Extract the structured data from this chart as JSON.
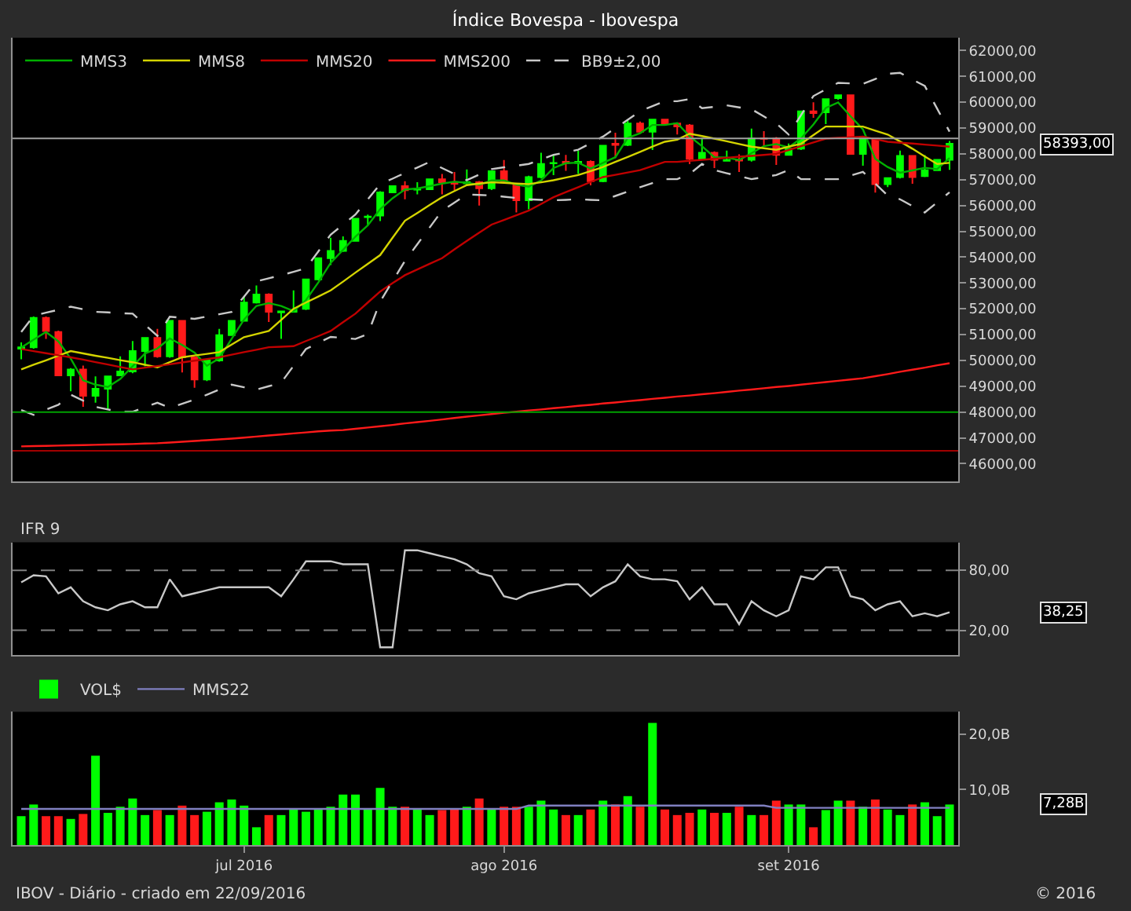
{
  "chart_data": [
    {
      "type": "candlestick",
      "title": "Índice Bovespa - Ibovespa",
      "categories": [
        null,
        null,
        null,
        null,
        null,
        null,
        null,
        null,
        null,
        null,
        null,
        null,
        null,
        null,
        null,
        null,
        null,
        null,
        null,
        null,
        null,
        null,
        null,
        null,
        null,
        null,
        null,
        null,
        null,
        null,
        null,
        null,
        null,
        null,
        null,
        null,
        null,
        null,
        null,
        null,
        null,
        null,
        null,
        null,
        null,
        null,
        null,
        null,
        null,
        null,
        null,
        null,
        null,
        null,
        null,
        null,
        null,
        null,
        null,
        null,
        null,
        null,
        null,
        null,
        null,
        null,
        null,
        null,
        null,
        null,
        null,
        null,
        null,
        null,
        null,
        null
      ],
      "ohlc": [
        [
          50450,
          50700,
          50040,
          50510
        ],
        [
          50510,
          51700,
          50450,
          51650
        ],
        [
          51650,
          51700,
          50830,
          51140
        ],
        [
          51100,
          51150,
          49400,
          49420
        ],
        [
          49420,
          49700,
          48800,
          49650
        ],
        [
          49650,
          49800,
          48200,
          48630
        ],
        [
          48630,
          49380,
          48360,
          48900
        ],
        [
          48900,
          49400,
          48080,
          49380
        ],
        [
          49420,
          50160,
          49400,
          49570
        ],
        [
          49570,
          50750,
          49500,
          50360
        ],
        [
          50360,
          50900,
          49770,
          50870
        ],
        [
          50870,
          51220,
          50100,
          50160
        ],
        [
          50160,
          51550,
          50100,
          51530
        ],
        [
          51530,
          51550,
          49530,
          50120
        ],
        [
          50120,
          50150,
          48940,
          49260
        ],
        [
          49260,
          50050,
          49200,
          50000
        ],
        [
          50000,
          51220,
          49950,
          50980
        ],
        [
          50980,
          51550,
          50950,
          51530
        ],
        [
          51530,
          52470,
          51500,
          52240
        ],
        [
          52240,
          52900,
          52200,
          52550
        ],
        [
          52550,
          52600,
          51490,
          51880
        ],
        [
          51860,
          51900,
          50830,
          51900
        ],
        [
          51880,
          52710,
          51850,
          51950
        ],
        [
          52000,
          53150,
          51950,
          53140
        ],
        [
          53140,
          53980,
          53100,
          53960
        ],
        [
          53960,
          54750,
          53690,
          54240
        ],
        [
          54240,
          54800,
          54200,
          54630
        ],
        [
          54630,
          55500,
          54600,
          55490
        ],
        [
          55550,
          55650,
          55240,
          55570
        ],
        [
          55610,
          56550,
          55400,
          56510
        ],
        [
          56510,
          56780,
          56500,
          56750
        ],
        [
          56750,
          56940,
          56240,
          56590
        ],
        [
          56610,
          56900,
          56430,
          56630
        ],
        [
          56630,
          57050,
          56600,
          57020
        ],
        [
          57020,
          57220,
          56430,
          56900
        ],
        [
          56880,
          57300,
          56600,
          56840
        ],
        [
          56860,
          57400,
          56800,
          56900
        ],
        [
          56900,
          56950,
          56000,
          56670
        ],
        [
          56670,
          57350,
          56600,
          57330
        ],
        [
          57330,
          57760,
          56850,
          56900
        ],
        [
          56790,
          56850,
          55730,
          56200
        ],
        [
          56200,
          57150,
          55850,
          57100
        ],
        [
          57100,
          58040,
          57050,
          57610
        ],
        [
          57630,
          57960,
          57180,
          57650
        ],
        [
          57690,
          57960,
          57340,
          57650
        ],
        [
          57650,
          58120,
          57220,
          57690
        ],
        [
          57690,
          57750,
          56780,
          56940
        ],
        [
          56940,
          58350,
          56900,
          58320
        ],
        [
          58390,
          58820,
          57840,
          58350
        ],
        [
          58350,
          59330,
          58300,
          59180
        ],
        [
          59180,
          59250,
          58800,
          58860
        ],
        [
          58860,
          59350,
          58150,
          59330
        ],
        [
          59330,
          59350,
          59100,
          59180
        ],
        [
          59180,
          59200,
          58750,
          59060
        ],
        [
          59100,
          59150,
          57600,
          57810
        ],
        [
          57810,
          58590,
          57800,
          58040
        ],
        [
          58040,
          58100,
          57450,
          57770
        ],
        [
          57730,
          58130,
          57700,
          57760
        ],
        [
          57780,
          57980,
          57300,
          57740
        ],
        [
          57770,
          58980,
          57700,
          58590
        ],
        [
          58600,
          58880,
          58280,
          58580
        ],
        [
          58590,
          58650,
          57570,
          57960
        ],
        [
          57960,
          58400,
          57930,
          58200
        ],
        [
          58200,
          59680,
          58150,
          59650
        ],
        [
          59650,
          60000,
          59400,
          59580
        ],
        [
          59610,
          60150,
          59150,
          60120
        ],
        [
          60160,
          60300,
          60100,
          60270
        ],
        [
          60270,
          60300,
          57990,
          58000
        ],
        [
          58000,
          58620,
          57540,
          58590
        ],
        [
          58590,
          58620,
          56500,
          56830
        ],
        [
          56830,
          57060,
          56710,
          57060
        ],
        [
          57100,
          58130,
          57050,
          57920
        ],
        [
          57920,
          57940,
          56840,
          57100
        ],
        [
          57140,
          57950,
          57100,
          57370
        ],
        [
          57370,
          57800,
          57350,
          57770
        ],
        [
          57770,
          58500,
          57380,
          58393
        ]
      ],
      "series": [
        {
          "name": "MMS3",
          "type": "line",
          "color": "#00b000",
          "values": [
            50500,
            50800,
            51100,
            50740,
            50070,
            49230,
            49060,
            48970,
            49280,
            49770,
            50270,
            50460,
            50850,
            50600,
            50300,
            49790,
            50080,
            50840,
            51580,
            52110,
            52220,
            52110,
            51910,
            52330,
            53020,
            53780,
            54280,
            54790,
            55230,
            55860,
            56280,
            56620,
            56660,
            56750,
            56850,
            56920,
            56880,
            56800,
            56970,
            56970,
            56810,
            56730,
            56970,
            57450,
            57640,
            57660,
            57430,
            57650,
            57870,
            58620,
            58800,
            59120,
            59120,
            59190,
            58680,
            58300,
            57870,
            57860,
            57760,
            58030,
            58300,
            58380,
            58250,
            58600,
            59140,
            59780,
            59990,
            59460,
            58950,
            57810,
            57490,
            57270,
            57360,
            57460,
            57410,
            57840
          ]
        },
        {
          "name": "MMS8",
          "type": "line",
          "color": "#d4d400",
          "values": [
            49650,
            49830,
            50000,
            50180,
            50360,
            50270,
            50180,
            50100,
            50010,
            49930,
            49830,
            49730,
            49930,
            50120,
            50190,
            50250,
            50320,
            50610,
            50900,
            51020,
            51140,
            51570,
            52000,
            52240,
            52470,
            52710,
            53050,
            53400,
            53740,
            54080,
            54750,
            55410,
            55710,
            56020,
            56320,
            56560,
            56790,
            56850,
            56900,
            56880,
            56850,
            56830,
            56900,
            56980,
            57080,
            57180,
            57330,
            57490,
            57690,
            57880,
            58080,
            58280,
            58470,
            58550,
            58780,
            58690,
            58590,
            58490,
            58380,
            58280,
            58220,
            58160,
            58280,
            58390,
            58730,
            59060,
            59060,
            59060,
            59060,
            58900,
            58750,
            58480,
            58200,
            57900,
            57610,
            57650
          ]
        },
        {
          "name": "MMS20",
          "type": "line",
          "color": "#c00000",
          "values": [
            50440,
            50360,
            50280,
            50200,
            50120,
            50030,
            49930,
            49840,
            49740,
            49650,
            49720,
            49780,
            49850,
            49920,
            49990,
            50050,
            50120,
            50220,
            50320,
            50410,
            50510,
            50530,
            50550,
            50750,
            50940,
            51140,
            51480,
            51810,
            52240,
            52670,
            52990,
            53300,
            53520,
            53740,
            53960,
            54300,
            54630,
            54950,
            55260,
            55440,
            55620,
            55800,
            56060,
            56320,
            56520,
            56710,
            56910,
            57100,
            57190,
            57280,
            57370,
            57530,
            57690,
            57690,
            57730,
            57770,
            57810,
            57850,
            57890,
            57920,
            57960,
            58000,
            58150,
            58300,
            58440,
            58590,
            58620,
            58640,
            58670,
            58570,
            58470,
            58430,
            58400,
            58360,
            58320,
            58280
          ]
        },
        {
          "name": "MMS200",
          "type": "line",
          "color": "#ff1a1a",
          "values": [
            46670,
            46680,
            46690,
            46700,
            46710,
            46720,
            46730,
            46740,
            46750,
            46760,
            46780,
            46790,
            46820,
            46850,
            46880,
            46910,
            46940,
            46970,
            47010,
            47050,
            47090,
            47130,
            47170,
            47210,
            47250,
            47280,
            47300,
            47350,
            47400,
            47450,
            47500,
            47560,
            47610,
            47660,
            47710,
            47770,
            47820,
            47870,
            47920,
            47970,
            48010,
            48060,
            48100,
            48150,
            48190,
            48240,
            48280,
            48330,
            48370,
            48420,
            48460,
            48510,
            48550,
            48600,
            48640,
            48690,
            48730,
            48780,
            48830,
            48870,
            48920,
            48970,
            49010,
            49060,
            49110,
            49160,
            49210,
            49260,
            49310,
            49390,
            49470,
            49560,
            49640,
            49720,
            49810,
            49890
          ]
        },
        {
          "name": "BB9±2,00",
          "type": "line",
          "color": "#c8c8c8",
          "line_style": "dashed",
          "values": [
            51100,
            51730,
            51850,
            51960,
            52080,
            51980,
            51880,
            51860,
            51830,
            51810,
            51380,
            50950,
            51690,
            51650,
            51610,
            51700,
            51790,
            51880,
            52470,
            53060,
            53180,
            53300,
            53430,
            53570,
            54220,
            54870,
            55260,
            55650,
            56240,
            56830,
            57040,
            57260,
            57470,
            57690,
            57450,
            57220,
            56980,
            57200,
            57410,
            57480,
            57540,
            57610,
            57780,
            57960,
            58060,
            58160,
            58410,
            58670,
            59000,
            59320,
            59650,
            59850,
            60040,
            60040,
            60120,
            59770,
            59820,
            59880,
            59800,
            59730,
            59450,
            59180,
            58750,
            59500,
            60240,
            60500,
            60750,
            60730,
            60710,
            60900,
            61100,
            61140,
            60880,
            60630,
            59750,
            58860
          ]
        },
        {
          "type": "line",
          "color": "#c8c8c8",
          "line_style": "dashed",
          "values": [
            48080,
            47890,
            48090,
            48280,
            48670,
            48440,
            48200,
            48100,
            48010,
            48010,
            48190,
            48360,
            48160,
            48320,
            48480,
            48670,
            48870,
            49060,
            48960,
            48870,
            49000,
            49140,
            49790,
            50440,
            50680,
            50910,
            50870,
            50830,
            51020,
            52280,
            53070,
            53850,
            54500,
            55150,
            55800,
            56110,
            56430,
            56410,
            56390,
            56340,
            56290,
            56240,
            56220,
            56200,
            56220,
            56240,
            56220,
            56200,
            56370,
            56540,
            56710,
            56870,
            57020,
            57020,
            57220,
            57610,
            57370,
            57250,
            57140,
            57020,
            57100,
            57180,
            57370,
            57020,
            57020,
            57020,
            57020,
            57160,
            57300,
            56850,
            56390,
            56240,
            55980,
            55730,
            56120,
            56510
          ]
        }
      ],
      "ylim": [
        45300,
        62500
      ],
      "yticks": [
        {
          "value": 46000,
          "label": "46000,00"
        },
        {
          "value": 47000,
          "label": "47000,00"
        },
        {
          "value": 48000,
          "label": "48000,00"
        },
        {
          "value": 49000,
          "label": "49000,00"
        },
        {
          "value": 50000,
          "label": "50000,00"
        },
        {
          "value": 51000,
          "label": "51000,00"
        },
        {
          "value": 52000,
          "label": "52000,00"
        },
        {
          "value": 53000,
          "label": "53000,00"
        },
        {
          "value": 54000,
          "label": "54000,00"
        },
        {
          "value": 55000,
          "label": "55000,00"
        },
        {
          "value": 56000,
          "label": "56000,00"
        },
        {
          "value": 57000,
          "label": "57000,00"
        },
        {
          "value": 58000,
          "label": "58000,00"
        },
        {
          "value": 59000,
          "label": "59000,00"
        },
        {
          "value": 60000,
          "label": "60000,00"
        },
        {
          "value": 61000,
          "label": "61000,00"
        },
        {
          "value": 62000,
          "label": "62000,00"
        }
      ],
      "ref_lines": [
        {
          "axis": "y",
          "value": 48000,
          "color": "#00a000"
        },
        {
          "axis": "y",
          "value": 46500,
          "color": "#a00000"
        },
        {
          "axis": "y",
          "value": 58600,
          "color": "#a0a0a0"
        }
      ],
      "annotations": [
        "58393,00"
      ],
      "legend": "top left",
      "tick_labels": "y"
    },
    {
      "type": "line",
      "title": "IFR 9",
      "categories": [
        null,
        null,
        null,
        null,
        null,
        null,
        null,
        null,
        null,
        null,
        null,
        null,
        null,
        null,
        null,
        null,
        null,
        null,
        null,
        null,
        null,
        null,
        null,
        null,
        null,
        null,
        null,
        null,
        null,
        null,
        null,
        null,
        null,
        null,
        null,
        null,
        null,
        null,
        null,
        null,
        null,
        null,
        null,
        null,
        null,
        null,
        null,
        null,
        null,
        null,
        null,
        null,
        null,
        null,
        null,
        null,
        null,
        null,
        null,
        null,
        null,
        null,
        null,
        null,
        null,
        null,
        null,
        null,
        null,
        null,
        null,
        null,
        null,
        null,
        null,
        null
      ],
      "series": [
        {
          "color": "#c8c8c8",
          "values": [
            68,
            75,
            74,
            57,
            63,
            49,
            43,
            40,
            46,
            49,
            43,
            43,
            71,
            54,
            57,
            60,
            63,
            63,
            63,
            63,
            63,
            54,
            71,
            89,
            89,
            89,
            86,
            86,
            86,
            3,
            3,
            100,
            100,
            97,
            94,
            91,
            86,
            77,
            74,
            54,
            51,
            57,
            60,
            63,
            66,
            66,
            54,
            63,
            69,
            86,
            74,
            71,
            71,
            69,
            51,
            63,
            46,
            46,
            26,
            49,
            40,
            34,
            40,
            74,
            71,
            83,
            83,
            54,
            51,
            40,
            46,
            49,
            34,
            37,
            34,
            38
          ]
        }
      ],
      "ylim": [
        -5,
        108
      ],
      "yticks": [
        {
          "value": 20,
          "label": "20,00"
        },
        {
          "value": 80,
          "label": "80,00"
        }
      ],
      "ref_lines": [
        {
          "axis": "y",
          "value": 80,
          "color": "#808080",
          "line_style": "dashed"
        },
        {
          "axis": "y",
          "value": 20,
          "color": "#808080",
          "line_style": "dashed"
        }
      ],
      "annotations": [
        "38,25"
      ],
      "tick_labels": "y"
    },
    {
      "type": "bar",
      "categories": [
        null,
        null,
        null,
        null,
        null,
        null,
        null,
        null,
        null,
        null,
        null,
        null,
        null,
        null,
        null,
        null,
        null,
        null,
        "jul 2016",
        null,
        null,
        null,
        null,
        null,
        null,
        null,
        null,
        null,
        null,
        null,
        null,
        null,
        null,
        null,
        null,
        null,
        null,
        null,
        null,
        "ago 2016",
        null,
        null,
        null,
        null,
        null,
        null,
        null,
        null,
        null,
        null,
        null,
        null,
        null,
        null,
        null,
        null,
        null,
        null,
        null,
        null,
        null,
        null,
        "set 2016",
        null,
        null,
        null,
        null,
        null,
        null,
        null,
        null,
        null,
        null,
        null,
        null,
        null
      ],
      "series": [
        {
          "name": "VOL$",
          "colors": [
            "#00ff00",
            "#00ff00",
            "#ff1a1a",
            "#ff1a1a",
            "#00ff00",
            "#ff1a1a",
            "#00ff00",
            "#00ff00",
            "#00ff00",
            "#00ff00",
            "#00ff00",
            "#ff1a1a",
            "#00ff00",
            "#ff1a1a",
            "#ff1a1a",
            "#00ff00",
            "#00ff00",
            "#00ff00",
            "#00ff00",
            "#00ff00",
            "#ff1a1a",
            "#00ff00",
            "#00ff00",
            "#00ff00",
            "#00ff00",
            "#00ff00",
            "#00ff00",
            "#00ff00",
            "#00ff00",
            "#00ff00",
            "#00ff00",
            "#ff1a1a",
            "#00ff00",
            "#00ff00",
            "#ff1a1a",
            "#ff1a1a",
            "#00ff00",
            "#ff1a1a",
            "#00ff00",
            "#ff1a1a",
            "#ff1a1a",
            "#00ff00",
            "#00ff00",
            "#00ff00",
            "#ff1a1a",
            "#00ff00",
            "#ff1a1a",
            "#00ff00",
            "#ff1a1a",
            "#00ff00",
            "#ff1a1a",
            "#00ff00",
            "#ff1a1a",
            "#ff1a1a",
            "#ff1a1a",
            "#00ff00",
            "#ff1a1a",
            "#00ff00",
            "#ff1a1a",
            "#00ff00",
            "#ff1a1a",
            "#ff1a1a",
            "#00ff00",
            "#00ff00",
            "#ff1a1a",
            "#00ff00",
            "#00ff00",
            "#ff1a1a",
            "#00ff00",
            "#ff1a1a",
            "#00ff00",
            "#00ff00",
            "#ff1a1a",
            "#00ff00",
            "#00ff00",
            "#00ff00"
          ],
          "values": [
            5.2,
            7.3,
            5.2,
            5.2,
            4.7,
            5.6,
            16.1,
            5.8,
            6.9,
            8.4,
            5.4,
            6.3,
            5.4,
            7.1,
            5.4,
            6.0,
            7.7,
            8.2,
            7.1,
            3.2,
            5.4,
            5.4,
            6.4,
            6.0,
            6.4,
            6.9,
            9.1,
            9.1,
            6.4,
            10.3,
            6.9,
            6.9,
            6.4,
            5.4,
            6.3,
            6.4,
            6.9,
            8.4,
            6.4,
            6.9,
            6.9,
            6.9,
            8.0,
            6.4,
            5.4,
            5.4,
            6.4,
            8.0,
            7.3,
            8.8,
            6.9,
            22.0,
            6.4,
            5.4,
            5.8,
            6.4,
            5.8,
            5.8,
            6.9,
            5.4,
            5.4,
            8.0,
            7.3,
            7.3,
            3.2,
            6.3,
            8.0,
            8.0,
            6.9,
            8.2,
            6.4,
            5.4,
            7.3,
            7.7,
            5.2,
            7.3
          ]
        },
        {
          "name": "MMS22",
          "type": "line",
          "color": "#8080c0",
          "values": [
            6.5,
            6.5,
            6.5,
            6.5,
            6.5,
            6.5,
            6.5,
            6.5,
            6.5,
            6.5,
            6.5,
            6.5,
            6.5,
            6.5,
            6.5,
            6.5,
            6.5,
            6.5,
            6.5,
            6.5,
            6.5,
            6.5,
            6.5,
            6.5,
            6.5,
            6.5,
            6.5,
            6.5,
            6.5,
            6.5,
            6.5,
            6.5,
            6.5,
            6.5,
            6.5,
            6.5,
            6.5,
            6.5,
            6.5,
            6.5,
            6.5,
            7.1,
            7.1,
            7.1,
            7.1,
            7.1,
            7.1,
            7.1,
            7.1,
            7.1,
            7.1,
            7.1,
            7.1,
            7.1,
            7.1,
            7.1,
            7.1,
            7.1,
            7.1,
            7.1,
            7.1,
            6.7,
            6.7,
            6.7,
            6.7,
            6.7,
            6.7,
            6.7,
            6.7,
            6.7,
            6.7,
            6.7,
            6.7,
            6.7,
            6.7,
            6.7
          ]
        }
      ],
      "ylim": [
        0,
        24
      ],
      "yticks": [
        {
          "value": 10,
          "label": "10,0B"
        },
        {
          "value": 20,
          "label": "20,0B"
        }
      ],
      "annotations": [
        "7,28B",
        "IBOV - Diário - criado em 22/09/2016",
        "© 2016"
      ],
      "legend": "top left"
    }
  ]
}
